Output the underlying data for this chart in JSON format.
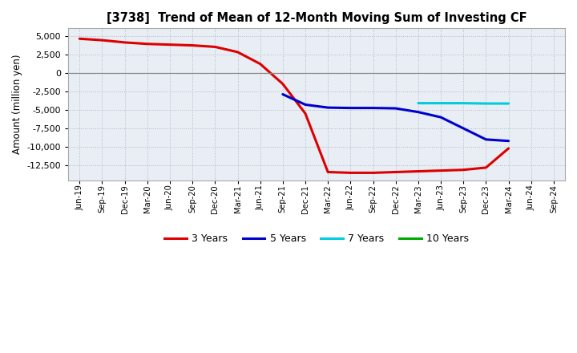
{
  "title": "[3738]  Trend of Mean of 12-Month Moving Sum of Investing CF",
  "ylabel": "Amount (million yen)",
  "background_color": "#ffffff",
  "plot_bg_color": "#e8eef4",
  "grid_color": "#b0b8c8",
  "x_labels": [
    "Jun-19",
    "Sep-19",
    "Dec-19",
    "Mar-20",
    "Jun-20",
    "Sep-20",
    "Dec-20",
    "Mar-21",
    "Jun-21",
    "Sep-21",
    "Dec-21",
    "Mar-22",
    "Jun-22",
    "Sep-22",
    "Dec-22",
    "Mar-23",
    "Jun-23",
    "Sep-23",
    "Dec-23",
    "Mar-24",
    "Jun-24",
    "Sep-24"
  ],
  "series_3y": {
    "color": "#dd0000",
    "linewidth": 2.2,
    "x": [
      0,
      1,
      2,
      3,
      4,
      5,
      6,
      7,
      8,
      9,
      10,
      11,
      12,
      13,
      14,
      15,
      16,
      17,
      18,
      19
    ],
    "y": [
      4600,
      4400,
      4100,
      3900,
      3800,
      3700,
      3500,
      2800,
      1200,
      -1500,
      -5500,
      -13400,
      -13500,
      -13500,
      -13400,
      -13300,
      -13200,
      -13100,
      -12800,
      -10200
    ]
  },
  "series_5y": {
    "color": "#0000cc",
    "linewidth": 2.2,
    "x": [
      9,
      10,
      11,
      12,
      13,
      14,
      15,
      16,
      17,
      18,
      19
    ],
    "y": [
      -2900,
      -4300,
      -4700,
      -4750,
      -4750,
      -4800,
      -5300,
      -6000,
      -7500,
      -9000,
      -9200
    ]
  },
  "series_7y": {
    "color": "#00ccdd",
    "linewidth": 2.2,
    "x": [
      15,
      16,
      17,
      18,
      19
    ],
    "y": [
      -4100,
      -4100,
      -4100,
      -4150,
      -4150
    ]
  },
  "series_10y": {
    "color": "#00aa00",
    "linewidth": 2.2,
    "x": [],
    "y": []
  },
  "ylim": [
    -14500,
    6000
  ],
  "yticks": [
    -12500,
    -10000,
    -7500,
    -5000,
    -2500,
    0,
    2500,
    5000
  ],
  "legend_labels": [
    "3 Years",
    "5 Years",
    "7 Years",
    "10 Years"
  ],
  "legend_colors": [
    "#dd0000",
    "#0000cc",
    "#00ccdd",
    "#00aa00"
  ]
}
